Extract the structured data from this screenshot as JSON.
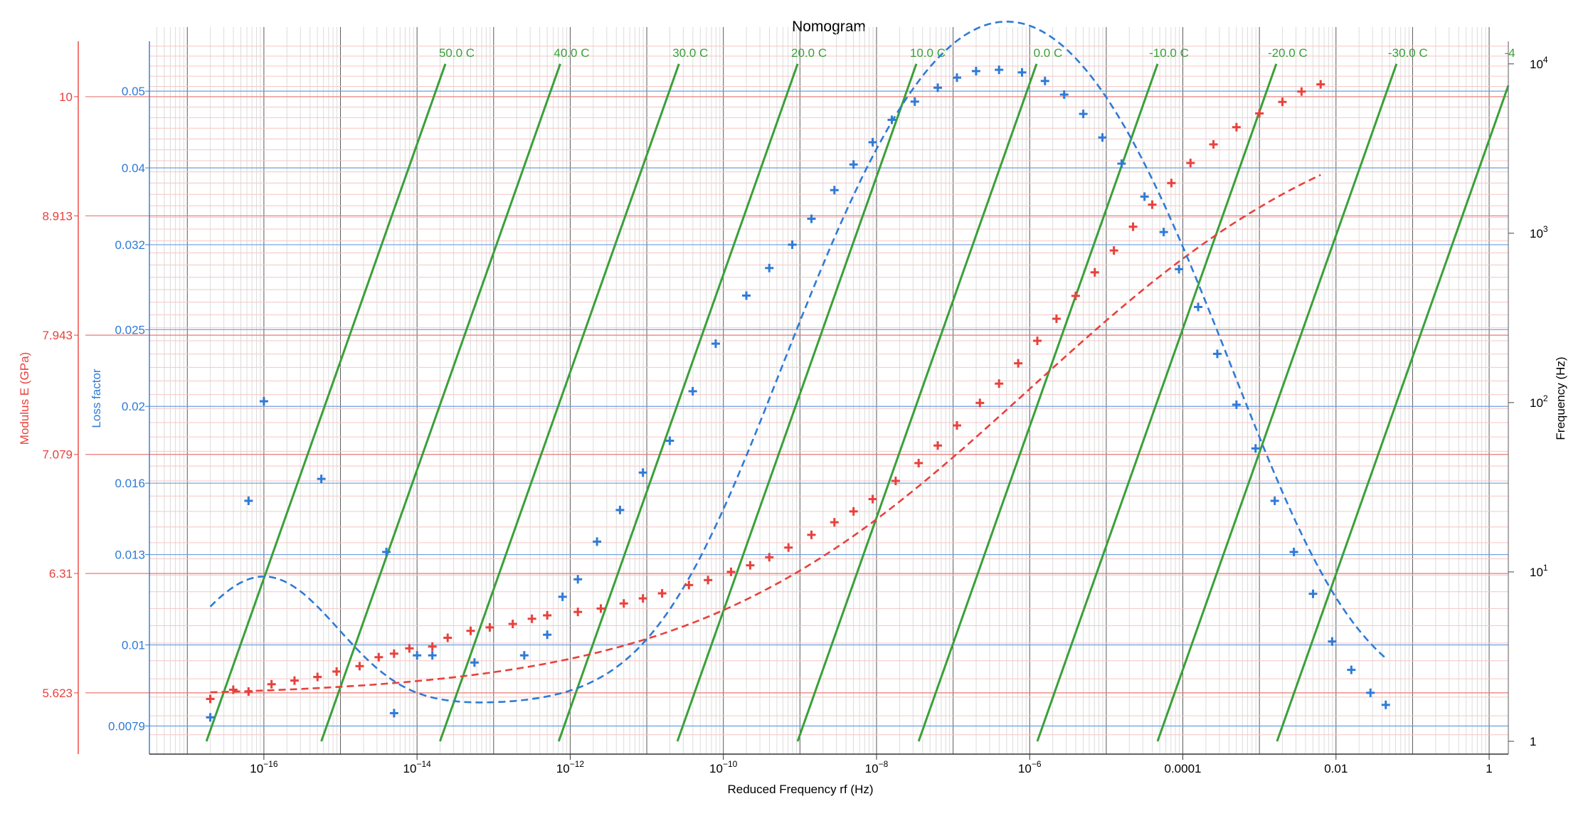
{
  "chart_data": {
    "type": "scatter",
    "title": "Nomogram",
    "xlabel": "Reduced Frequency rf (Hz)",
    "ylabel_modulus": "Modulus E (GPa)",
    "ylabel_loss": "Loss factor",
    "ylabel_freq": "Frequency (Hz)",
    "x_scale": "log",
    "xlim": [
      3.2e-18,
      1.78
    ],
    "x_tick_labels": [
      {
        "value": 1e-16,
        "label": "10^-16"
      },
      {
        "value": 1e-14,
        "label": "10^-14"
      },
      {
        "value": 1e-12,
        "label": "10^-12"
      },
      {
        "value": 1e-10,
        "label": "10^-10"
      },
      {
        "value": 1e-08,
        "label": "10^-8"
      },
      {
        "value": 1e-06,
        "label": "10^-6"
      },
      {
        "value": 0.0001,
        "label": "0.0001"
      },
      {
        "value": 0.01,
        "label": "0.01"
      },
      {
        "value": 1,
        "label": "1"
      }
    ],
    "modulus_axis": {
      "scale": "log",
      "ylim": [
        5.3,
        10.55
      ],
      "ticks": [
        "5.623",
        "6.31",
        "7.079",
        "7.943",
        "8.913",
        "10"
      ],
      "color": "#e8413c"
    },
    "loss_axis": {
      "scale": "log",
      "ylim": [
        0.00728,
        0.0578
      ],
      "ticks": [
        "0.0079",
        "0.01",
        "0.013",
        "0.016",
        "0.02",
        "0.025",
        "0.032",
        "0.04",
        "0.05"
      ],
      "color": "#2e7bd6"
    },
    "freq_axis": {
      "scale": "log",
      "ylim": [
        0.84,
        13600
      ],
      "ticks": [
        {
          "value": 1,
          "label": "1"
        },
        {
          "value": 10,
          "label": "10^1"
        },
        {
          "value": 100,
          "label": "10^2"
        },
        {
          "value": 1000,
          "label": "10^3"
        },
        {
          "value": 10000,
          "label": "10^4"
        }
      ]
    },
    "isotherms": [
      {
        "label": "50.0 C",
        "log_shift": -18.2
      },
      {
        "label": "40.0 C",
        "log_shift": -16.7
      },
      {
        "label": "30.0 C",
        "log_shift": -15.15
      },
      {
        "label": "20.0 C",
        "log_shift": -13.6
      },
      {
        "label": "10.0 C",
        "log_shift": -12.05
      },
      {
        "label": "0.0 C",
        "log_shift": -10.48
      },
      {
        "label": "-10.0 C",
        "log_shift": -8.9
      },
      {
        "label": "-20.0 C",
        "log_shift": -7.35
      },
      {
        "label": "-30.0 C",
        "log_shift": -5.78
      },
      {
        "label": "-4",
        "log_shift": -4.22
      }
    ],
    "isotherm_color": "#3aa03a",
    "series": [
      {
        "name": "Modulus E",
        "color": "#e8413c",
        "axis": "modulus",
        "points": [
          [
            -16.7,
            5.59
          ],
          [
            -16.4,
            5.64
          ],
          [
            -16.2,
            5.63
          ],
          [
            -15.9,
            5.67
          ],
          [
            -15.6,
            5.69
          ],
          [
            -15.3,
            5.71
          ],
          [
            -15.05,
            5.74
          ],
          [
            -14.75,
            5.77
          ],
          [
            -14.5,
            5.82
          ],
          [
            -14.3,
            5.84
          ],
          [
            -14.1,
            5.87
          ],
          [
            -13.8,
            5.88
          ],
          [
            -13.6,
            5.93
          ],
          [
            -13.3,
            5.97
          ],
          [
            -13.05,
            5.99
          ],
          [
            -12.75,
            6.01
          ],
          [
            -12.5,
            6.04
          ],
          [
            -12.3,
            6.06
          ],
          [
            -11.9,
            6.08
          ],
          [
            -11.6,
            6.1
          ],
          [
            -11.3,
            6.13
          ],
          [
            -11.05,
            6.16
          ],
          [
            -10.8,
            6.19
          ],
          [
            -10.45,
            6.24
          ],
          [
            -10.2,
            6.27
          ],
          [
            -9.9,
            6.32
          ],
          [
            -9.65,
            6.36
          ],
          [
            -9.4,
            6.41
          ],
          [
            -9.15,
            6.47
          ],
          [
            -8.85,
            6.55
          ],
          [
            -8.55,
            6.63
          ],
          [
            -8.3,
            6.7
          ],
          [
            -8.05,
            6.78
          ],
          [
            -7.75,
            6.9
          ],
          [
            -7.45,
            7.02
          ],
          [
            -7.2,
            7.14
          ],
          [
            -6.95,
            7.28
          ],
          [
            -6.65,
            7.44
          ],
          [
            -6.4,
            7.58
          ],
          [
            -6.15,
            7.73
          ],
          [
            -5.9,
            7.9
          ],
          [
            -5.65,
            8.07
          ],
          [
            -5.4,
            8.25
          ],
          [
            -5.15,
            8.44
          ],
          [
            -4.9,
            8.62
          ],
          [
            -4.65,
            8.82
          ],
          [
            -4.4,
            9.01
          ],
          [
            -4.15,
            9.2
          ],
          [
            -3.9,
            9.38
          ],
          [
            -3.6,
            9.55
          ],
          [
            -3.3,
            9.71
          ],
          [
            -3.0,
            9.84
          ],
          [
            -2.7,
            9.95
          ],
          [
            -2.45,
            10.05
          ],
          [
            -2.2,
            10.12
          ]
        ]
      },
      {
        "name": "Loss factor",
        "color": "#2e7bd6",
        "axis": "loss",
        "points": [
          [
            -16.7,
            0.0081
          ],
          [
            -16.0,
            0.0203
          ],
          [
            -16.2,
            0.0152
          ],
          [
            -15.25,
            0.0162
          ],
          [
            -14.4,
            0.0131
          ],
          [
            -14.3,
            0.0082
          ],
          [
            -14.0,
            0.0097
          ],
          [
            -13.8,
            0.0097
          ],
          [
            -13.25,
            0.0095
          ],
          [
            -12.6,
            0.0097
          ],
          [
            -12.3,
            0.0103
          ],
          [
            -12.1,
            0.0115
          ],
          [
            -11.9,
            0.0121
          ],
          [
            -11.65,
            0.0135
          ],
          [
            -11.35,
            0.0148
          ],
          [
            -11.05,
            0.0165
          ],
          [
            -10.7,
            0.0181
          ],
          [
            -10.4,
            0.0209
          ],
          [
            -10.1,
            0.024
          ],
          [
            -9.7,
            0.0276
          ],
          [
            -9.4,
            0.0299
          ],
          [
            -9.1,
            0.032
          ],
          [
            -8.85,
            0.0345
          ],
          [
            -8.55,
            0.0375
          ],
          [
            -8.3,
            0.0404
          ],
          [
            -8.05,
            0.0431
          ],
          [
            -7.8,
            0.046
          ],
          [
            -7.5,
            0.0485
          ],
          [
            -7.2,
            0.0505
          ],
          [
            -6.95,
            0.052
          ],
          [
            -6.7,
            0.053
          ],
          [
            -6.4,
            0.0532
          ],
          [
            -6.1,
            0.0528
          ],
          [
            -5.8,
            0.0515
          ],
          [
            -5.55,
            0.0495
          ],
          [
            -5.3,
            0.0468
          ],
          [
            -5.05,
            0.0437
          ],
          [
            -4.8,
            0.0405
          ],
          [
            -4.5,
            0.0368
          ],
          [
            -4.25,
            0.0332
          ],
          [
            -4.05,
            0.0298
          ],
          [
            -3.8,
            0.0267
          ],
          [
            -3.55,
            0.0233
          ],
          [
            -3.3,
            0.0201
          ],
          [
            -3.05,
            0.0177
          ],
          [
            -2.8,
            0.0152
          ],
          [
            -2.55,
            0.0131
          ],
          [
            -2.3,
            0.0116
          ],
          [
            -2.05,
            0.0101
          ],
          [
            -1.8,
            0.0093
          ],
          [
            -1.55,
            0.0087
          ],
          [
            -1.35,
            0.0084
          ]
        ]
      }
    ],
    "fit_curves": [
      {
        "name": "Modulus E fit",
        "color": "#e8413c",
        "style": "dashed"
      },
      {
        "name": "Loss factor fit",
        "color": "#2e7bd6",
        "style": "dashed"
      }
    ],
    "grid": true
  }
}
